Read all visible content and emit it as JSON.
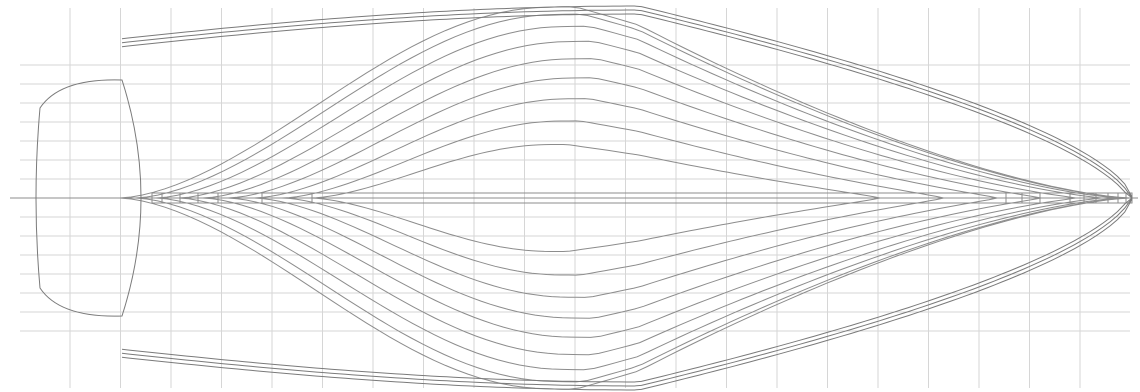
{
  "drawing": {
    "background": "#ffffff",
    "line_color": "#8c8c8c",
    "grid_color": "#d6d6d6",
    "outline_color": "#7a7a7a"
  },
  "hull_lines": {
    "waterline_count": 9,
    "station_count": 21,
    "buttock_count": 7
  }
}
